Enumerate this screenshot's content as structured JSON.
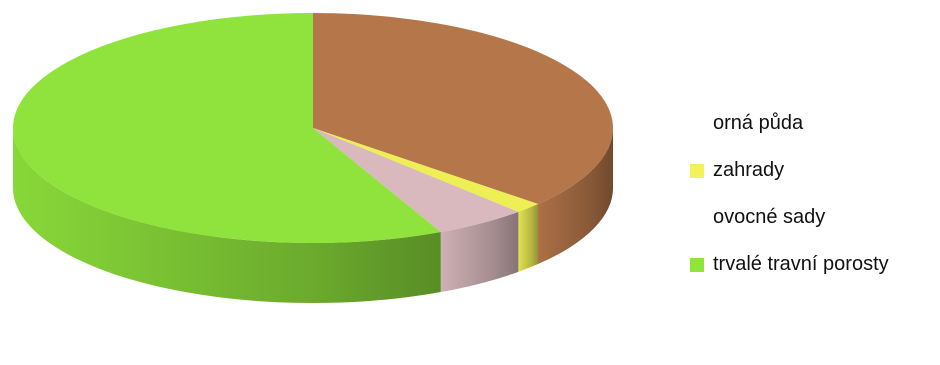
{
  "chart_data": {
    "type": "pie",
    "title": "",
    "legend_position": "right",
    "legend_marker_colors": [
      "",
      "#f2f25a",
      "",
      "#8ee63a"
    ],
    "categories": [
      "orná půda",
      "zahrady",
      "ovocné sady",
      "trvalé travní porosty"
    ],
    "values": [
      36.5,
      1.5,
      5,
      57
    ],
    "colors": [
      "#b5764a",
      "#eeee55",
      "#d9b9be",
      "#8fe33c"
    ]
  }
}
